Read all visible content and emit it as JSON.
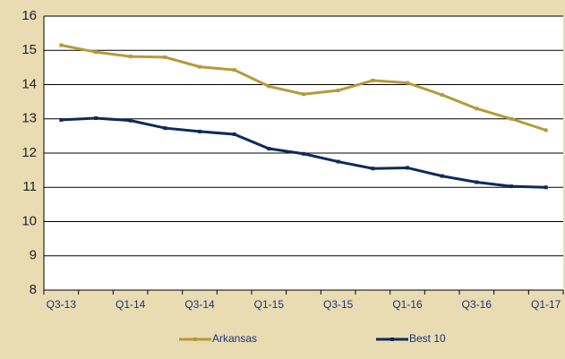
{
  "chart_data": {
    "type": "line",
    "categories": [
      "Q3-13",
      null,
      "Q1-14",
      null,
      "Q3-14",
      null,
      "Q1-15",
      null,
      "Q3-15",
      null,
      "Q1-16",
      null,
      "Q3-16",
      null,
      "Q1-17"
    ],
    "series": [
      {
        "name": "Arkansas",
        "color": "#b59a3c",
        "values": [
          15.15,
          14.95,
          14.82,
          14.8,
          14.52,
          14.43,
          13.95,
          13.72,
          13.83,
          14.12,
          14.05,
          13.7,
          13.3,
          13.0,
          12.67
        ]
      },
      {
        "name": "Best 10",
        "color": "#0d2b5a",
        "values": [
          12.97,
          13.02,
          12.95,
          12.73,
          12.63,
          12.55,
          12.13,
          11.98,
          11.75,
          11.55,
          11.57,
          11.33,
          11.15,
          11.03,
          11.0
        ]
      }
    ],
    "ylim": [
      8,
      16
    ],
    "yticks": [
      8,
      9,
      10,
      11,
      12,
      13,
      14,
      15,
      16
    ],
    "grid": true,
    "legend": "bottom"
  }
}
